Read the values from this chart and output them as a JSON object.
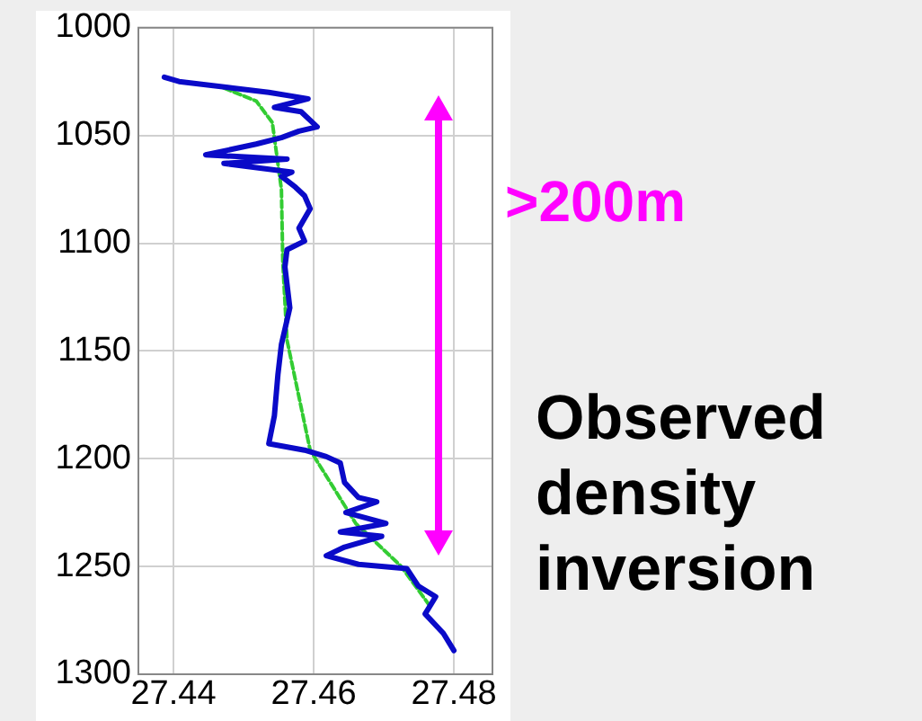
{
  "chart_data": {
    "type": "line",
    "xlim": [
      27.435,
      27.4855
    ],
    "xticks": [
      27.44,
      27.46,
      27.48
    ],
    "ylim": [
      1300,
      1000
    ],
    "yticks": [
      1000,
      1050,
      1100,
      1150,
      1200,
      1250,
      1300
    ],
    "grid": true,
    "legend": false,
    "marker": "none",
    "annotations": [
      ">200m",
      "Observed density inversion"
    ],
    "series": [
      {
        "color": "#0a0ac8",
        "line_style": "solid",
        "x": [
          27.4387,
          27.4408,
          27.4485,
          27.4536,
          27.4592,
          27.4544,
          27.4582,
          27.4605,
          27.4579,
          27.4554,
          27.4518,
          27.4446,
          27.4562,
          27.4472,
          27.4569,
          27.4554,
          27.4574,
          27.4587,
          27.4595,
          27.4579,
          27.4587,
          27.4562,
          27.4559,
          27.4566,
          27.4554,
          27.4549,
          27.4544,
          27.4536,
          27.4587,
          27.4618,
          27.4638,
          27.4644,
          27.4664,
          27.469,
          27.4646,
          27.4703,
          27.4638,
          27.4697,
          27.4644,
          27.4618,
          27.4664,
          27.4733,
          27.4749,
          27.4774,
          27.4759,
          27.4785,
          27.48
        ],
        "values": [
          1023,
          1025,
          1028,
          1030,
          1033,
          1037,
          1039,
          1046,
          1048,
          1051,
          1054,
          1059,
          1061,
          1063,
          1067,
          1069,
          1074,
          1078,
          1084,
          1093,
          1099,
          1103,
          1111,
          1130,
          1147,
          1161,
          1180,
          1193,
          1196,
          1199,
          1202,
          1211,
          1218,
          1220,
          1225,
          1230,
          1234,
          1236,
          1241,
          1245,
          1249,
          1251,
          1259,
          1264,
          1272,
          1281,
          1289
        ]
      },
      {
        "color": "#33cc33",
        "line_style": "dashed",
        "x": [
          27.4472,
          27.4518,
          27.4541,
          27.4554,
          27.4556,
          27.4562,
          27.4595,
          27.466,
          27.4725,
          27.4765
        ],
        "values": [
          1028,
          1034,
          1044,
          1075,
          1109,
          1145,
          1196,
          1230,
          1250,
          1268
        ]
      }
    ]
  }
}
